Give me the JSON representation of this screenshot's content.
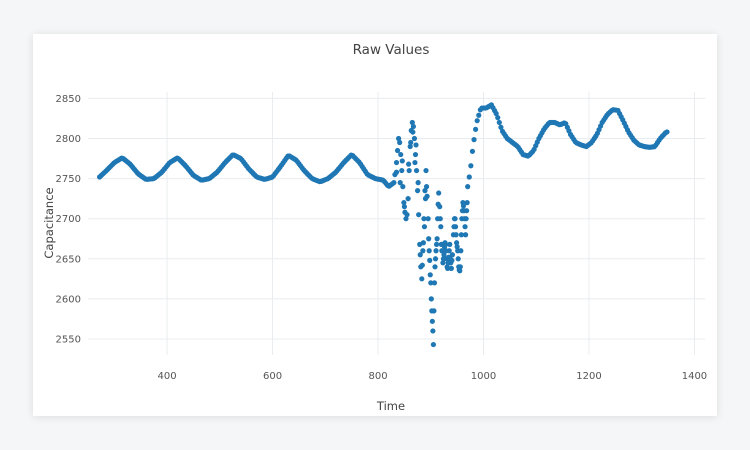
{
  "chart_data": {
    "type": "scatter",
    "title": "Raw Values",
    "xlabel": "Time",
    "ylabel": "Capacitance",
    "xlim": [
      250,
      1420
    ],
    "ylim": [
      2530,
      2858
    ],
    "x_ticks": [
      400,
      600,
      800,
      1000,
      1200,
      1400
    ],
    "y_ticks": [
      2550,
      2600,
      2650,
      2700,
      2750,
      2800,
      2850
    ],
    "grid": true,
    "marker_color": "#1f77b4",
    "series": [
      {
        "x_start": 272,
        "x_step": 3,
        "segments": [
          {
            "x": 272,
            "y": 2752
          },
          {
            "x": 285,
            "y": 2760
          },
          {
            "x": 300,
            "y": 2770
          },
          {
            "x": 315,
            "y": 2776
          },
          {
            "x": 330,
            "y": 2768
          },
          {
            "x": 345,
            "y": 2756
          },
          {
            "x": 360,
            "y": 2749
          },
          {
            "x": 375,
            "y": 2750
          },
          {
            "x": 390,
            "y": 2758
          },
          {
            "x": 405,
            "y": 2770
          },
          {
            "x": 420,
            "y": 2776
          },
          {
            "x": 435,
            "y": 2766
          },
          {
            "x": 450,
            "y": 2754
          },
          {
            "x": 465,
            "y": 2748
          },
          {
            "x": 480,
            "y": 2750
          },
          {
            "x": 495,
            "y": 2758
          },
          {
            "x": 510,
            "y": 2770
          },
          {
            "x": 525,
            "y": 2780
          },
          {
            "x": 540,
            "y": 2775
          },
          {
            "x": 555,
            "y": 2762
          },
          {
            "x": 570,
            "y": 2752
          },
          {
            "x": 585,
            "y": 2749
          },
          {
            "x": 600,
            "y": 2752
          },
          {
            "x": 615,
            "y": 2765
          },
          {
            "x": 630,
            "y": 2779
          },
          {
            "x": 645,
            "y": 2773
          },
          {
            "x": 660,
            "y": 2760
          },
          {
            "x": 675,
            "y": 2750
          },
          {
            "x": 690,
            "y": 2746
          },
          {
            "x": 705,
            "y": 2750
          },
          {
            "x": 720,
            "y": 2758
          },
          {
            "x": 735,
            "y": 2770
          },
          {
            "x": 750,
            "y": 2780
          },
          {
            "x": 765,
            "y": 2770
          },
          {
            "x": 780,
            "y": 2755
          },
          {
            "x": 795,
            "y": 2750
          },
          {
            "x": 810,
            "y": 2748
          },
          {
            "x": 820,
            "y": 2740
          },
          {
            "x": 830,
            "y": 2745
          }
        ],
        "segments_tail": [
          {
            "x": 970,
            "y": 2740
          },
          {
            "x": 975,
            "y": 2760
          },
          {
            "x": 980,
            "y": 2790
          },
          {
            "x": 987,
            "y": 2820
          },
          {
            "x": 995,
            "y": 2838
          },
          {
            "x": 1005,
            "y": 2838
          },
          {
            "x": 1015,
            "y": 2842
          },
          {
            "x": 1025,
            "y": 2830
          },
          {
            "x": 1035,
            "y": 2810
          },
          {
            "x": 1045,
            "y": 2800
          },
          {
            "x": 1055,
            "y": 2795
          },
          {
            "x": 1065,
            "y": 2790
          },
          {
            "x": 1075,
            "y": 2780
          },
          {
            "x": 1085,
            "y": 2778
          },
          {
            "x": 1095,
            "y": 2785
          },
          {
            "x": 1105,
            "y": 2800
          },
          {
            "x": 1115,
            "y": 2812
          },
          {
            "x": 1125,
            "y": 2820
          },
          {
            "x": 1135,
            "y": 2820
          },
          {
            "x": 1145,
            "y": 2817
          },
          {
            "x": 1155,
            "y": 2820
          },
          {
            "x": 1165,
            "y": 2805
          },
          {
            "x": 1175,
            "y": 2795
          },
          {
            "x": 1185,
            "y": 2792
          },
          {
            "x": 1195,
            "y": 2790
          },
          {
            "x": 1205,
            "y": 2795
          },
          {
            "x": 1215,
            "y": 2805
          },
          {
            "x": 1225,
            "y": 2820
          },
          {
            "x": 1235,
            "y": 2830
          },
          {
            "x": 1245,
            "y": 2836
          },
          {
            "x": 1255,
            "y": 2835
          },
          {
            "x": 1265,
            "y": 2822
          },
          {
            "x": 1275,
            "y": 2808
          },
          {
            "x": 1285,
            "y": 2798
          },
          {
            "x": 1295,
            "y": 2792
          },
          {
            "x": 1305,
            "y": 2790
          },
          {
            "x": 1315,
            "y": 2789
          },
          {
            "x": 1325,
            "y": 2790
          },
          {
            "x": 1335,
            "y": 2800
          },
          {
            "x": 1345,
            "y": 2807
          },
          {
            "x": 1350,
            "y": 2809
          }
        ],
        "scatter_points": [
          [
            832,
            2755
          ],
          [
            835,
            2770
          ],
          [
            837,
            2785
          ],
          [
            839,
            2800
          ],
          [
            841,
            2795
          ],
          [
            843,
            2780
          ],
          [
            845,
            2760
          ],
          [
            847,
            2740
          ],
          [
            849,
            2720
          ],
          [
            851,
            2708
          ],
          [
            853,
            2700
          ],
          [
            855,
            2705
          ],
          [
            857,
            2725
          ],
          [
            859,
            2760
          ],
          [
            861,
            2790
          ],
          [
            863,
            2810
          ],
          [
            865,
            2820
          ],
          [
            867,
            2815
          ],
          [
            869,
            2800
          ],
          [
            871,
            2780
          ],
          [
            873,
            2760
          ],
          [
            875,
            2735
          ],
          [
            877,
            2705
          ],
          [
            879,
            2668
          ],
          [
            881,
            2640
          ],
          [
            883,
            2625
          ],
          [
            885,
            2660
          ],
          [
            887,
            2700
          ],
          [
            889,
            2735
          ],
          [
            891,
            2760
          ],
          [
            893,
            2728
          ],
          [
            895,
            2700
          ],
          [
            897,
            2660
          ],
          [
            899,
            2630
          ],
          [
            901,
            2600
          ],
          [
            903,
            2572
          ],
          [
            904,
            2560
          ],
          [
            905,
            2543
          ],
          [
            906,
            2585
          ],
          [
            907,
            2620
          ],
          [
            909,
            2650
          ],
          [
            911,
            2668
          ],
          [
            913,
            2700
          ],
          [
            915,
            2732
          ],
          [
            917,
            2715
          ],
          [
            919,
            2690
          ],
          [
            921,
            2660
          ],
          [
            923,
            2645
          ],
          [
            925,
            2655
          ],
          [
            927,
            2670
          ],
          [
            929,
            2660
          ],
          [
            931,
            2640
          ],
          [
            933,
            2645
          ],
          [
            935,
            2660
          ],
          [
            937,
            2650
          ],
          [
            939,
            2638
          ],
          [
            941,
            2655
          ],
          [
            943,
            2680
          ],
          [
            945,
            2700
          ],
          [
            947,
            2690
          ],
          [
            949,
            2670
          ],
          [
            951,
            2660
          ],
          [
            953,
            2640
          ],
          [
            955,
            2635
          ],
          [
            957,
            2660
          ],
          [
            959,
            2700
          ],
          [
            961,
            2720
          ],
          [
            963,
            2710
          ],
          [
            965,
            2690
          ],
          [
            967,
            2700
          ],
          [
            969,
            2720
          ],
          [
            835,
            2758
          ],
          [
            842,
            2745
          ],
          [
            846,
            2772
          ],
          [
            850,
            2715
          ],
          [
            858,
            2768
          ],
          [
            862,
            2795
          ],
          [
            866,
            2808
          ],
          [
            870,
            2770
          ],
          [
            872,
            2792
          ],
          [
            876,
            2745
          ],
          [
            880,
            2655
          ],
          [
            884,
            2642
          ],
          [
            886,
            2670
          ],
          [
            888,
            2690
          ],
          [
            890,
            2725
          ],
          [
            892,
            2740
          ],
          [
            896,
            2675
          ],
          [
            898,
            2648
          ],
          [
            900,
            2620
          ],
          [
            902,
            2585
          ],
          [
            908,
            2640
          ],
          [
            910,
            2660
          ],
          [
            912,
            2675
          ],
          [
            914,
            2718
          ],
          [
            918,
            2700
          ],
          [
            920,
            2668
          ],
          [
            924,
            2650
          ],
          [
            926,
            2665
          ],
          [
            928,
            2668
          ],
          [
            930,
            2650
          ],
          [
            932,
            2638
          ],
          [
            934,
            2652
          ],
          [
            936,
            2668
          ],
          [
            938,
            2645
          ],
          [
            940,
            2648
          ],
          [
            944,
            2690
          ],
          [
            946,
            2700
          ],
          [
            948,
            2680
          ],
          [
            950,
            2665
          ],
          [
            952,
            2650
          ],
          [
            954,
            2636
          ],
          [
            956,
            2640
          ],
          [
            958,
            2680
          ],
          [
            960,
            2710
          ],
          [
            962,
            2716
          ],
          [
            964,
            2700
          ],
          [
            966,
            2680
          ],
          [
            968,
            2710
          ]
        ]
      }
    ]
  }
}
